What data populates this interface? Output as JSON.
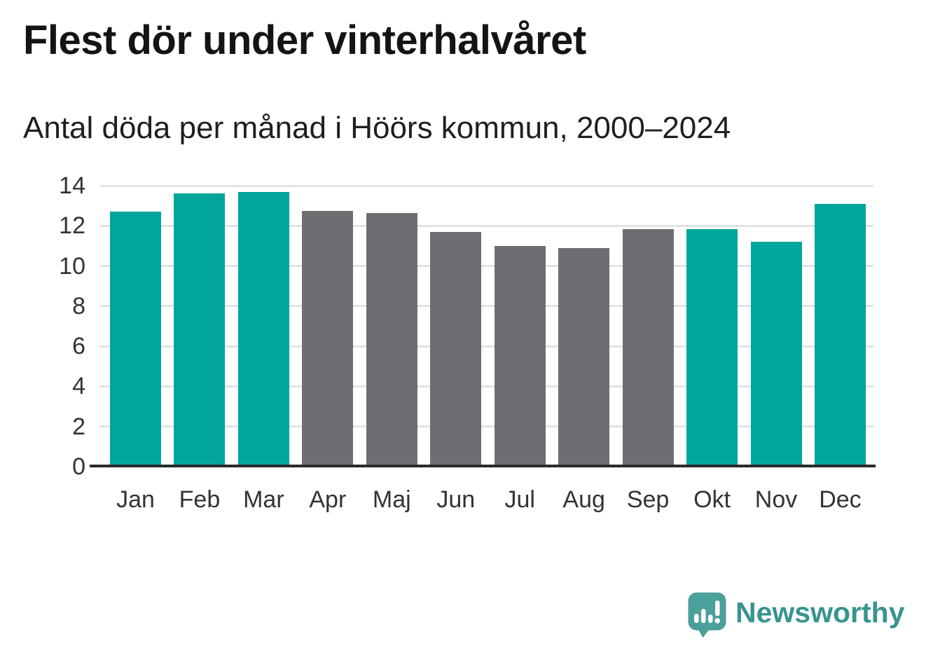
{
  "header": {
    "title": "Flest dör under vinterhalvåret",
    "subtitle": "Antal döda per månad i Höörs kommun, 2000–2024"
  },
  "chart_data": {
    "type": "bar",
    "title": "Flest dör under vinterhalvåret",
    "subtitle": "Antal döda per månad i Höörs kommun, 2000–2024",
    "categories": [
      "Jan",
      "Feb",
      "Mar",
      "Apr",
      "Maj",
      "Jun",
      "Jul",
      "Aug",
      "Sep",
      "Okt",
      "Nov",
      "Dec"
    ],
    "values": [
      12.7,
      13.6,
      13.7,
      12.75,
      12.65,
      11.7,
      11.0,
      10.9,
      11.85,
      11.85,
      11.2,
      13.1
    ],
    "bar_groups": [
      "winter",
      "winter",
      "winter",
      "summer",
      "summer",
      "summer",
      "summer",
      "summer",
      "summer",
      "winter",
      "winter",
      "winter"
    ],
    "group_colors": {
      "winter": "#00a59c",
      "summer": "#6e6e72"
    },
    "yticks": [
      0,
      2,
      4,
      6,
      8,
      10,
      12,
      14
    ],
    "ylim": [
      0,
      14
    ],
    "grid": "horizontal",
    "legend": "none",
    "axis_color": "#2b2b2b",
    "gridline_color": "#e3e3e3",
    "label_color": "#333333"
  },
  "footer": {
    "brand": "Newsworthy",
    "brand_color": "#38948e",
    "brand_icon_color": "#4aa09a",
    "brand_icon": "speech-bubble-bar-chart-exclamation"
  }
}
